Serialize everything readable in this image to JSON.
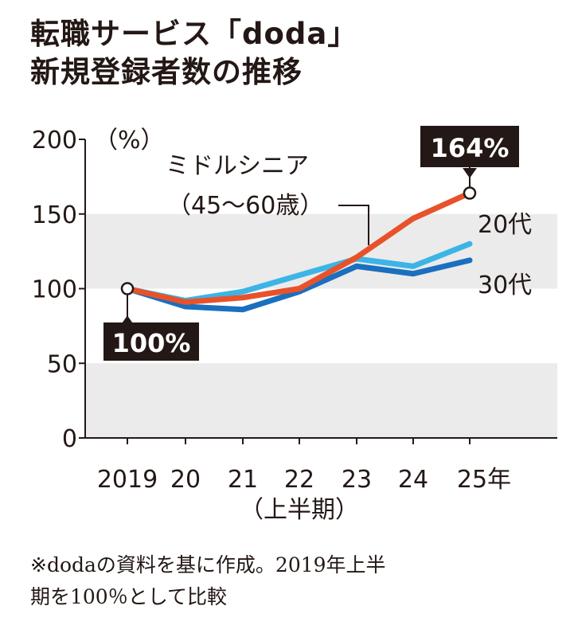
{
  "title_line1": "転職サービス「doda」",
  "title_line2": "新規登録者数の推移",
  "note_line1": "※dodaの資料を基に作成。2019年上半",
  "note_line2": "期を100％として比較",
  "chart_data": {
    "type": "line",
    "title": "転職サービス「doda」新規登録者数の推移",
    "ylabel": "（%）",
    "xlabel": "（上半期）",
    "ylim": [
      0,
      200
    ],
    "yticks": [
      "0",
      "50",
      "100",
      "150",
      "200"
    ],
    "categories": [
      "2019",
      "20",
      "21",
      "22",
      "23",
      "24",
      "25年"
    ],
    "series": [
      {
        "name": "20代",
        "color": "#3cb4e6",
        "values": [
          100,
          92,
          98,
          109,
          120,
          115,
          130
        ]
      },
      {
        "name": "30代",
        "color": "#1a6fbf",
        "values": [
          100,
          88,
          86,
          98,
          115,
          110,
          119
        ]
      },
      {
        "name": "ミドルシニア（45～60歳）",
        "color": "#e8522a",
        "values": [
          100,
          91,
          94,
          100,
          121,
          147,
          164
        ]
      }
    ],
    "series_label_middle_line1": "ミドルシニア",
    "series_label_middle_line2": "（45～60歳）",
    "annotations": [
      "100%",
      "164%"
    ],
    "grid": "alternating gray bands"
  }
}
